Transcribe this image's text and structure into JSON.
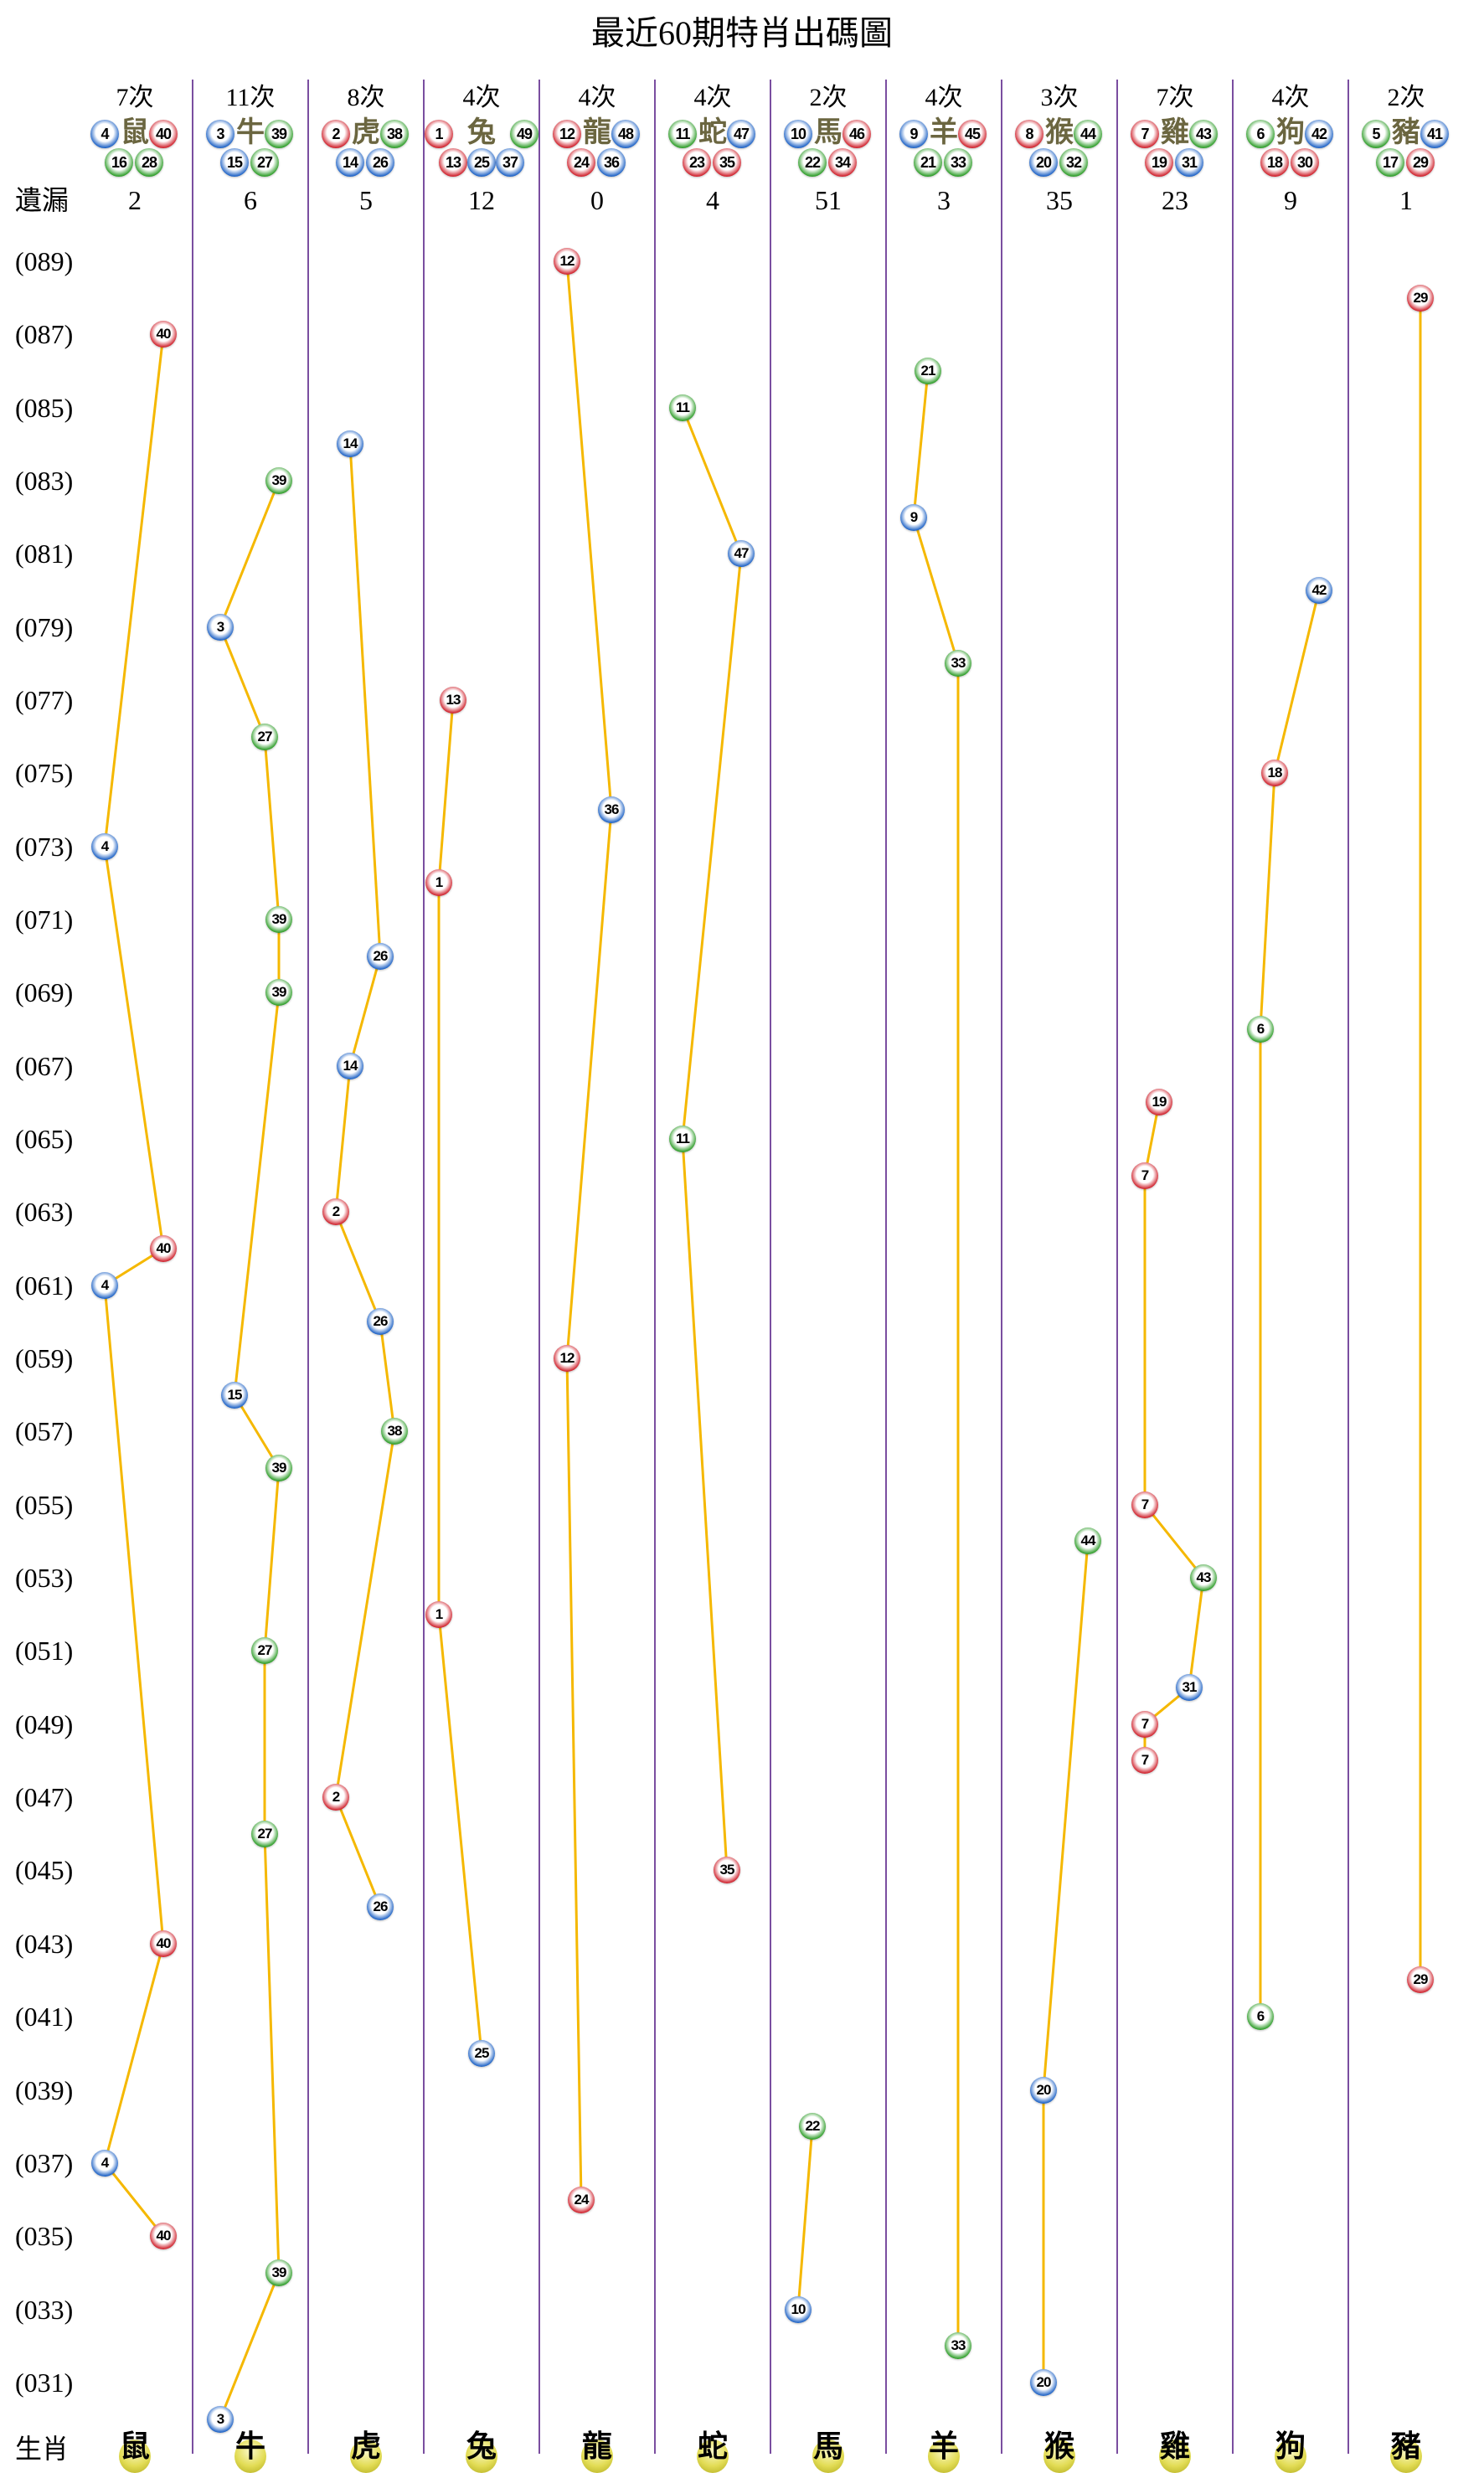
{
  "title": "最近60期特肖出碼圖",
  "labels": {
    "omission": "遺漏",
    "zodiac": "生肖"
  },
  "colors": {
    "red": "#d0232e",
    "blue": "#1f63c6",
    "green": "#2f9e2a",
    "line": "#f5b800",
    "separator": "#7a4ea0",
    "zodiac_badge": "#e2dc55"
  },
  "columns": [
    {
      "animal": "鼠",
      "count_label": "7次",
      "numbers": [
        4,
        16,
        28,
        40
      ],
      "omission": "2"
    },
    {
      "animal": "牛",
      "count_label": "11次",
      "numbers": [
        3,
        15,
        27,
        39
      ],
      "omission": "6"
    },
    {
      "animal": "虎",
      "count_label": "8次",
      "numbers": [
        2,
        14,
        26,
        38
      ],
      "omission": "5"
    },
    {
      "animal": "兔",
      "count_label": "4次",
      "numbers": [
        1,
        13,
        25,
        37,
        49
      ],
      "omission": "12"
    },
    {
      "animal": "龍",
      "count_label": "4次",
      "numbers": [
        12,
        24,
        36,
        48
      ],
      "omission": "0"
    },
    {
      "animal": "蛇",
      "count_label": "4次",
      "numbers": [
        11,
        23,
        35,
        47
      ],
      "omission": "4"
    },
    {
      "animal": "馬",
      "count_label": "2次",
      "numbers": [
        10,
        22,
        34,
        46
      ],
      "omission": "51"
    },
    {
      "animal": "羊",
      "count_label": "4次",
      "numbers": [
        9,
        21,
        33,
        45
      ],
      "omission": "3"
    },
    {
      "animal": "猴",
      "count_label": "3次",
      "numbers": [
        8,
        20,
        32,
        44
      ],
      "omission": "35"
    },
    {
      "animal": "雞",
      "count_label": "7次",
      "numbers": [
        7,
        19,
        31,
        43
      ],
      "omission": "23"
    },
    {
      "animal": "狗",
      "count_label": "4次",
      "numbers": [
        6,
        18,
        30,
        42
      ],
      "omission": "9"
    },
    {
      "animal": "豬",
      "count_label": "2次",
      "numbers": [
        5,
        17,
        29,
        41
      ],
      "omission": "1"
    }
  ],
  "wave_colors": {
    "red": [
      1,
      2,
      7,
      8,
      12,
      13,
      18,
      19,
      23,
      24,
      29,
      30,
      34,
      35,
      40,
      45,
      46
    ],
    "blue": [
      3,
      4,
      9,
      10,
      14,
      15,
      20,
      25,
      26,
      31,
      36,
      37,
      41,
      42,
      47,
      48
    ],
    "green": [
      5,
      6,
      11,
      16,
      17,
      21,
      22,
      27,
      28,
      32,
      33,
      38,
      39,
      43,
      44,
      49
    ]
  },
  "chart_data": {
    "type": "scatter",
    "x_categories": [
      "鼠",
      "牛",
      "虎",
      "兔",
      "龍",
      "蛇",
      "馬",
      "羊",
      "猴",
      "雞",
      "狗",
      "豬"
    ],
    "y_tick_labels": [
      "(089)",
      "(087)",
      "(085)",
      "(083)",
      "(081)",
      "(079)",
      "(077)",
      "(075)",
      "(073)",
      "(071)",
      "(069)",
      "(067)",
      "(065)",
      "(063)",
      "(061)",
      "(059)",
      "(057)",
      "(055)",
      "(053)",
      "(051)",
      "(049)",
      "(047)",
      "(045)",
      "(043)",
      "(041)",
      "(039)",
      "(037)",
      "(035)",
      "(033)",
      "(031)"
    ],
    "y_range": [
      30,
      89
    ],
    "connect_consecutive_in_column": true,
    "draws": [
      {
        "period": 89,
        "number": 12
      },
      {
        "period": 88,
        "number": 29
      },
      {
        "period": 87,
        "number": 40
      },
      {
        "period": 86,
        "number": 21
      },
      {
        "period": 85,
        "number": 11
      },
      {
        "period": 84,
        "number": 14
      },
      {
        "period": 83,
        "number": 39
      },
      {
        "period": 82,
        "number": 9
      },
      {
        "period": 81,
        "number": 47
      },
      {
        "period": 80,
        "number": 42
      },
      {
        "period": 79,
        "number": 3
      },
      {
        "period": 78,
        "number": 33
      },
      {
        "period": 77,
        "number": 13
      },
      {
        "period": 76,
        "number": 27
      },
      {
        "period": 75,
        "number": 18
      },
      {
        "period": 74,
        "number": 36
      },
      {
        "period": 73,
        "number": 4
      },
      {
        "period": 72,
        "number": 1
      },
      {
        "period": 71,
        "number": 39
      },
      {
        "period": 70,
        "number": 26
      },
      {
        "period": 69,
        "number": 39
      },
      {
        "period": 68,
        "number": 6
      },
      {
        "period": 67,
        "number": 14
      },
      {
        "period": 66,
        "number": 19
      },
      {
        "period": 65,
        "number": 11
      },
      {
        "period": 64,
        "number": 7
      },
      {
        "period": 63,
        "number": 2
      },
      {
        "period": 62,
        "number": 40
      },
      {
        "period": 61,
        "number": 4
      },
      {
        "period": 60,
        "number": 26
      },
      {
        "period": 59,
        "number": 12
      },
      {
        "period": 58,
        "number": 15
      },
      {
        "period": 57,
        "number": 38
      },
      {
        "period": 56,
        "number": 39
      },
      {
        "period": 55,
        "number": 7
      },
      {
        "period": 54,
        "number": 44
      },
      {
        "period": 53,
        "number": 43
      },
      {
        "period": 52,
        "number": 1
      },
      {
        "period": 51,
        "number": 27
      },
      {
        "period": 50,
        "number": 31
      },
      {
        "period": 49,
        "number": 7
      },
      {
        "period": 48,
        "number": 7
      },
      {
        "period": 47,
        "number": 2
      },
      {
        "period": 46,
        "number": 27
      },
      {
        "period": 45,
        "number": 35
      },
      {
        "period": 44,
        "number": 26
      },
      {
        "period": 43,
        "number": 40
      },
      {
        "period": 42,
        "number": 29
      },
      {
        "period": 41,
        "number": 6
      },
      {
        "period": 40,
        "number": 25
      },
      {
        "period": 39,
        "number": 20
      },
      {
        "period": 38,
        "number": 22
      },
      {
        "period": 37,
        "number": 4
      },
      {
        "period": 36,
        "number": 24
      },
      {
        "period": 35,
        "number": 40
      },
      {
        "period": 34,
        "number": 39
      },
      {
        "period": 33,
        "number": 10
      },
      {
        "period": 32,
        "number": 33
      },
      {
        "period": 31,
        "number": 20
      },
      {
        "period": 30,
        "number": 3
      }
    ]
  }
}
